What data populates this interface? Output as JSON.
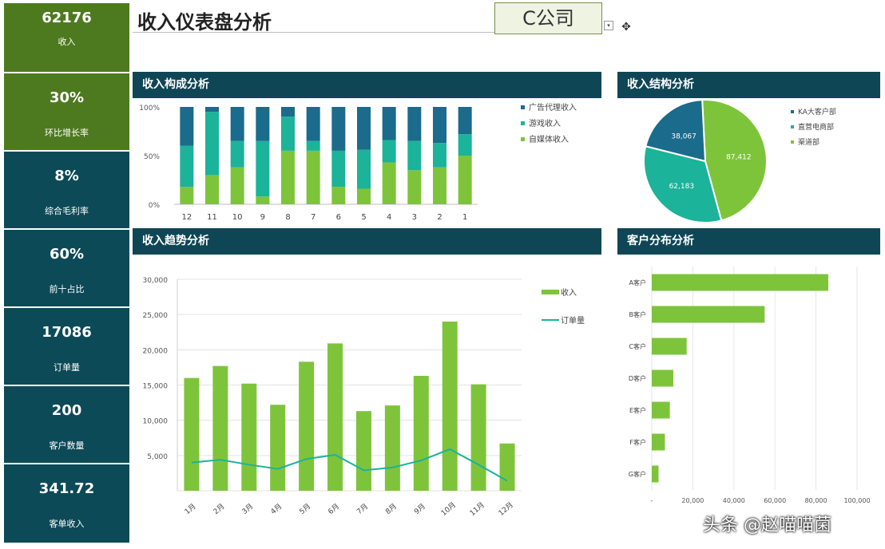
{
  "title": "收入仪表盘分析",
  "company": "C公司",
  "watermark": "头条 @赵喵喵菌",
  "kpis": [
    {
      "value": "62176",
      "label": "收入"
    },
    {
      "value": "30%",
      "label": "环比增长率"
    },
    {
      "value": "8%",
      "label": "综合毛利率"
    },
    {
      "value": "60%",
      "label": "前十占比"
    },
    {
      "value": "17086",
      "label": "订单量"
    },
    {
      "value": "200",
      "label": "客户数量"
    },
    {
      "value": "341.72",
      "label": "客单收入"
    }
  ],
  "colors": {
    "dark_teal": "#1a6b8c",
    "teal": "#1bb39a",
    "green": "#7ec43b",
    "header": "#0f4656",
    "kpi_green": "#4d7a1e",
    "kpi_teal": "#0d4a57"
  },
  "panels": {
    "composition": "收入构成分析",
    "structure": "收入结构分析",
    "trend": "收入趋势分析",
    "customers": "客户分布分析"
  },
  "chart_data": [
    {
      "type": "bar",
      "stacked": "percent",
      "categories": [
        "12",
        "11",
        "10",
        "9",
        "8",
        "7",
        "6",
        "5",
        "4",
        "3",
        "2",
        "1"
      ],
      "y_ticks": [
        "0%",
        "50%",
        "100%"
      ],
      "series": [
        {
          "name": "自媒体收入",
          "values": [
            18,
            30,
            38,
            8,
            55,
            55,
            18,
            16,
            43,
            35,
            38,
            50
          ]
        },
        {
          "name": "游戏收入",
          "values": [
            42,
            65,
            27,
            57,
            35,
            10,
            37,
            40,
            23,
            30,
            25,
            22
          ]
        },
        {
          "name": "广告代理收入",
          "values": [
            40,
            5,
            35,
            35,
            10,
            35,
            45,
            44,
            34,
            35,
            37,
            28
          ]
        }
      ],
      "legend": "right"
    },
    {
      "type": "pie",
      "labels": [
        "KA大客户部",
        "直营电商部",
        "渠道部"
      ],
      "values": [
        38067,
        62183,
        87412
      ],
      "value_labels": [
        "38,067",
        "62,183",
        "87,412"
      ],
      "legend": "right"
    },
    {
      "type": "bar",
      "combo_line": true,
      "categories": [
        "1月",
        "2月",
        "3月",
        "4月",
        "5月",
        "6月",
        "7月",
        "8月",
        "9月",
        "10月",
        "11月",
        "12月"
      ],
      "y_ticks": [
        "0",
        "5,000",
        "10,000",
        "15,000",
        "20,000",
        "25,000",
        "30,000"
      ],
      "ylim": [
        0,
        30000
      ],
      "series": [
        {
          "name": "收入",
          "kind": "bar",
          "values": [
            16000,
            17700,
            15200,
            12200,
            18300,
            20900,
            11300,
            12100,
            16300,
            24000,
            15100,
            6700
          ]
        },
        {
          "name": "订单量",
          "kind": "line",
          "values": [
            4000,
            4400,
            3700,
            3100,
            4500,
            5100,
            2900,
            3300,
            4300,
            5900,
            3700,
            1400
          ]
        }
      ],
      "legend": "right"
    },
    {
      "type": "bar",
      "orientation": "horizontal",
      "categories": [
        "A客户",
        "B客户",
        "C客户",
        "D客户",
        "E客户",
        "F客户",
        "G客户"
      ],
      "values": [
        86000,
        55000,
        17000,
        10500,
        8800,
        6400,
        3300
      ],
      "x_ticks": [
        "-",
        "20,000",
        "40,000",
        "60,000",
        "80,000",
        "100,000"
      ],
      "xlim": [
        0,
        100000
      ]
    }
  ]
}
